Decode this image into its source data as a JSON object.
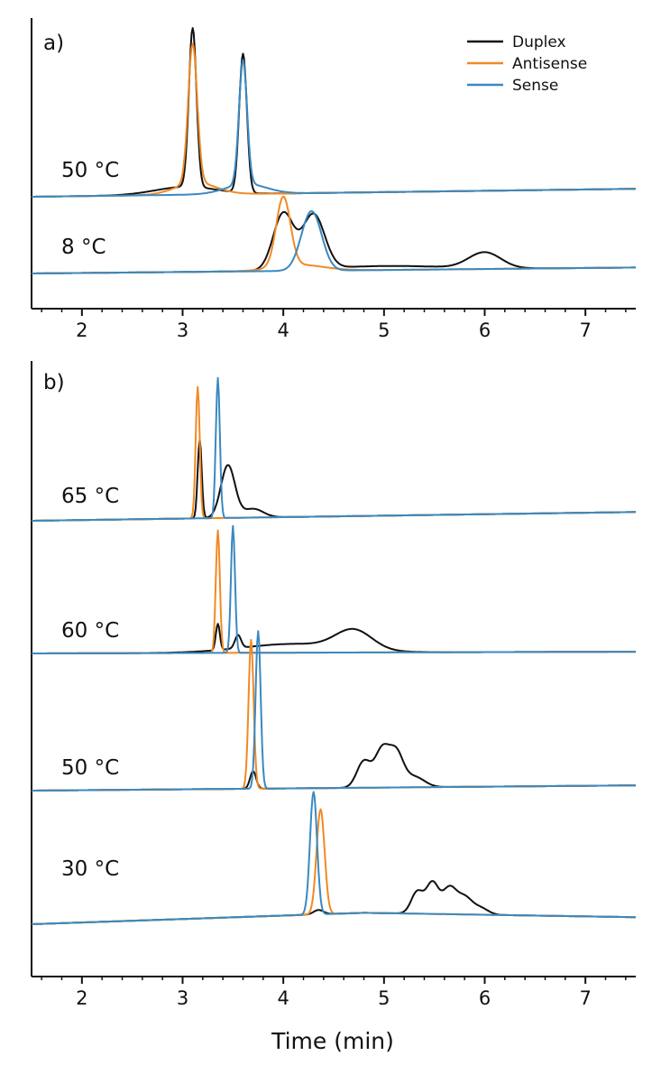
{
  "chart_data": [
    {
      "panel": "a)",
      "type": "line",
      "xlim": [
        1.5,
        7.5
      ],
      "x_ticks": [
        2,
        3,
        4,
        5,
        6,
        7
      ],
      "xlabel": "",
      "legend": {
        "placement": "top-right",
        "entries": [
          {
            "name": "Duplex",
            "color": "#111111"
          },
          {
            "name": "Antisense",
            "color": "#f08a24"
          },
          {
            "name": "Sense",
            "color": "#3a89c0"
          }
        ]
      },
      "traces": [
        {
          "label": "50 °C",
          "baseline": [
            [
              1.5,
              0.0
            ],
            [
              7.5,
              0.08
            ]
          ],
          "peaks": {
            "Duplex": [
              [
                3.1,
                1.6,
                0.038
              ],
              [
                3.6,
                1.4,
                0.038
              ],
              [
                3.03,
                0.08,
                0.3
              ]
            ],
            "Antisense": [
              [
                3.1,
                1.4,
                0.045
              ],
              [
                3.13,
                0.12,
                0.2
              ]
            ],
            "Sense": [
              [
                3.6,
                1.25,
                0.04
              ],
              [
                3.63,
                0.1,
                0.2
              ]
            ]
          }
        },
        {
          "label": "8 °C",
          "baseline": [
            [
              1.5,
              0.0
            ],
            [
              7.5,
              0.06
            ]
          ],
          "peaks": {
            "Duplex": [
              [
                4.0,
                0.57,
                0.1
              ],
              [
                4.3,
                0.55,
                0.11
              ],
              [
                5.0,
                0.04,
                0.6
              ],
              [
                6.0,
                0.16,
                0.16
              ]
            ],
            "Antisense": [
              [
                4.0,
                0.7,
                0.07
              ],
              [
                4.15,
                0.06,
                0.25
              ]
            ],
            "Sense": [
              [
                4.28,
                0.6,
                0.1
              ]
            ]
          }
        }
      ]
    },
    {
      "panel": "b)",
      "type": "line",
      "xlim": [
        1.5,
        7.5
      ],
      "x_ticks": [
        2,
        3,
        4,
        5,
        6,
        7
      ],
      "xlabel": "Time (min)",
      "traces": [
        {
          "label": "65 °C",
          "baseline": [
            [
              1.5,
              0.0
            ],
            [
              7.5,
              0.1
            ]
          ],
          "peaks": {
            "Duplex": [
              [
                3.17,
                0.9,
                0.02
              ],
              [
                3.45,
                0.6,
                0.07
              ],
              [
                3.7,
                0.1,
                0.1
              ]
            ],
            "Antisense": [
              [
                3.15,
                1.5,
                0.02
              ]
            ],
            "Sense": [
              [
                3.35,
                1.6,
                0.02
              ]
            ]
          }
        },
        {
          "label": "60 °C",
          "baseline": [
            [
              1.5,
              0.0
            ],
            [
              7.5,
              0.02
            ]
          ],
          "peaks": {
            "Duplex": [
              [
                3.35,
                0.3,
                0.02
              ],
              [
                3.55,
                0.15,
                0.03
              ],
              [
                4.1,
                0.1,
                0.5
              ],
              [
                4.7,
                0.22,
                0.18
              ]
            ],
            "Antisense": [
              [
                3.35,
                1.4,
                0.02
              ]
            ],
            "Sense": [
              [
                3.5,
                1.45,
                0.02
              ]
            ]
          }
        },
        {
          "label": "50 °C",
          "baseline": [
            [
              1.5,
              0.0
            ],
            [
              7.5,
              0.06
            ]
          ],
          "peaks": {
            "Duplex": [
              [
                3.7,
                0.2,
                0.03
              ],
              [
                4.8,
                0.3,
                0.07
              ],
              [
                4.98,
                0.42,
                0.07
              ],
              [
                5.12,
                0.38,
                0.07
              ],
              [
                5.3,
                0.12,
                0.1
              ]
            ],
            "Antisense": [
              [
                3.68,
                1.7,
                0.025
              ]
            ],
            "Sense": [
              [
                3.75,
                1.8,
                0.025
              ]
            ]
          }
        },
        {
          "label": "30 °C",
          "baseline": [
            [
              1.5,
              0.0
            ],
            [
              4.8,
              0.13
            ],
            [
              7.5,
              0.08
            ]
          ],
          "peaks": {
            "Duplex": [
              [
                4.35,
                0.05,
                0.05
              ],
              [
                5.33,
                0.25,
                0.06
              ],
              [
                5.48,
                0.35,
                0.06
              ],
              [
                5.65,
                0.3,
                0.07
              ],
              [
                5.8,
                0.18,
                0.07
              ],
              [
                5.95,
                0.08,
                0.08
              ]
            ],
            "Antisense": [
              [
                4.37,
                1.2,
                0.04
              ]
            ],
            "Sense": [
              [
                4.3,
                1.4,
                0.035
              ]
            ]
          }
        }
      ]
    }
  ]
}
